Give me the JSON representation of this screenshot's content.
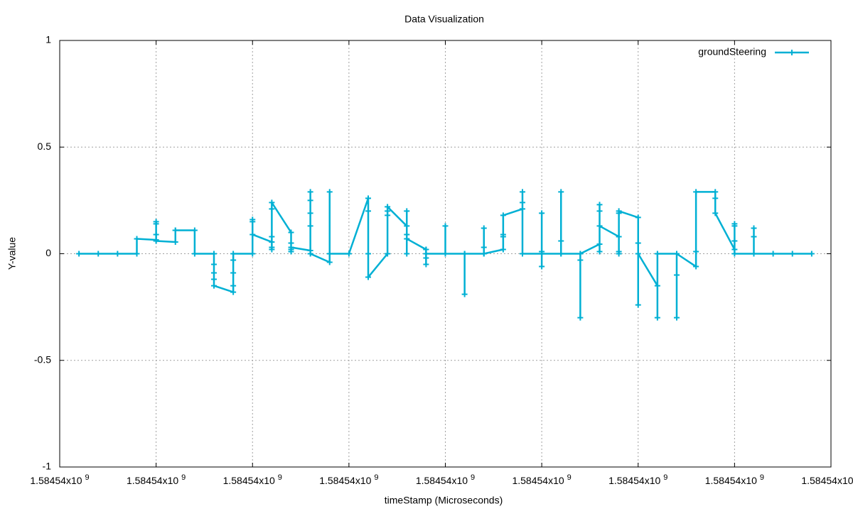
{
  "chart_data": {
    "type": "line",
    "title": "Data Visualization",
    "x_label": "timeStamp (Microseconds)",
    "y_label": "Y-value",
    "xlim": [
      0,
      8
    ],
    "xticks": [
      {
        "value": 0,
        "label": "1.58454x10",
        "exponent": "9"
      },
      {
        "value": 1,
        "label": "1.58454x10",
        "exponent": "9"
      },
      {
        "value": 2,
        "label": "1.58454x10",
        "exponent": "9"
      },
      {
        "value": 3,
        "label": "1.58454x10",
        "exponent": "9"
      },
      {
        "value": 4,
        "label": "1.58454x10",
        "exponent": "9"
      },
      {
        "value": 5,
        "label": "1.58454x10",
        "exponent": "9"
      },
      {
        "value": 6,
        "label": "1.58454x10",
        "exponent": "9"
      },
      {
        "value": 7,
        "label": "1.58454x10",
        "exponent": "9"
      },
      {
        "value": 8,
        "label": "1.58454x10",
        "exponent": "9"
      }
    ],
    "ylim": [
      -1,
      1
    ],
    "yticks": [
      -1,
      -0.5,
      0,
      0.5,
      1
    ],
    "grid": true,
    "legend": "top-right",
    "series": [
      {
        "name": "groundSteering",
        "color": "#00b0d4",
        "x": [
          0.2,
          0.4,
          0.6,
          0.8,
          0.8,
          1,
          1,
          1,
          1,
          1,
          1.2,
          1.2,
          1.2,
          1.4,
          1.4,
          1.6,
          1.6,
          1.6,
          1.6,
          1.6,
          1.8,
          1.8,
          1.8,
          1.8,
          1.8,
          2,
          2,
          2,
          2,
          2.2,
          2.2,
          2.2,
          2.2,
          2.2,
          2.2,
          2.4,
          2.4,
          2.4,
          2.4,
          2.4,
          2.6,
          2.6,
          2.6,
          2.6,
          2.6,
          2.6,
          2.8,
          2.8,
          2.8,
          3,
          3.2,
          3.2,
          3.2,
          3.2,
          3.4,
          3.4,
          3.4,
          3.4,
          3.6,
          3.6,
          3.6,
          3.6,
          3.6,
          3.8,
          3.8,
          3.8,
          3.8,
          3.8,
          4,
          4,
          4,
          4.2,
          4.2,
          4.2,
          4.4,
          4.4,
          4.4,
          4.4,
          4.6,
          4.6,
          4.6,
          4.6,
          4.8,
          4.8,
          4.8,
          4.8,
          5,
          5,
          5,
          5,
          5,
          5.2,
          5.2,
          5.2,
          5.2,
          5.4,
          5.4,
          5.4,
          5.4,
          5.6,
          5.6,
          5.6,
          5.6,
          5.6,
          5.8,
          5.8,
          5.8,
          5.8,
          5.8,
          6,
          6,
          6,
          6,
          6.2,
          6.2,
          6.2,
          6.4,
          6.4,
          6.4,
          6.4,
          6.6,
          6.6,
          6.6,
          6.8,
          6.8,
          6.8,
          7,
          7,
          7,
          7,
          7,
          7.2,
          7.2,
          7.2,
          7.2,
          7.4,
          7.6,
          7.8
        ],
        "values": [
          0,
          0,
          0,
          0,
          0.07,
          0.065,
          0.15,
          0.14,
          0.09,
          0.06,
          0.055,
          0.11,
          0.11,
          0.11,
          0,
          0,
          -0.05,
          -0.09,
          -0.12,
          -0.15,
          -0.18,
          -0.15,
          -0.09,
          -0.03,
          0,
          0,
          0.15,
          0.16,
          0.09,
          0.055,
          0.02,
          0.03,
          0.08,
          0.21,
          0.24,
          0.1,
          0.05,
          0.01,
          0.02,
          0.03,
          0.015,
          0.13,
          0.19,
          0.25,
          0.29,
          0,
          -0.04,
          0.29,
          0,
          0,
          0.26,
          0.2,
          0,
          -0.11,
          0,
          0.18,
          0.2,
          0.22,
          0.13,
          0.2,
          0.09,
          0,
          0.07,
          0.02,
          -0.02,
          -0.05,
          0.02,
          0,
          0,
          0.13,
          0,
          0,
          -0.19,
          0,
          0,
          0.12,
          0.03,
          0,
          0.02,
          0.09,
          0.08,
          0.18,
          0.21,
          0.24,
          0.29,
          0,
          0,
          0.19,
          0.01,
          -0.06,
          0,
          0,
          0.06,
          0.29,
          0,
          0,
          -0.3,
          -0.03,
          0,
          0.045,
          0.01,
          0.23,
          0.2,
          0.13,
          0.08,
          0.01,
          0,
          0.19,
          0.2,
          0.17,
          0.05,
          -0.24,
          0,
          -0.15,
          -0.3,
          0,
          0,
          -0.3,
          -0.1,
          0,
          -0.06,
          0.01,
          0.29,
          0.29,
          0.26,
          0.19,
          0.02,
          0.13,
          0.14,
          0.06,
          0,
          0,
          0.12,
          0.08,
          0,
          0,
          0,
          0
        ]
      }
    ]
  }
}
